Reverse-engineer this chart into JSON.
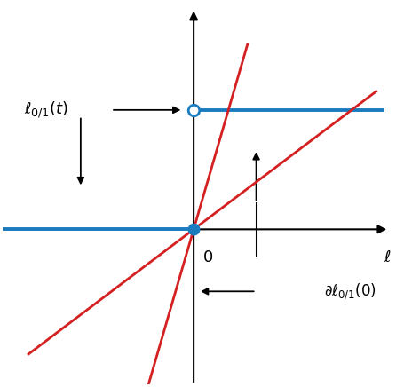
{
  "background_color": "#ffffff",
  "blue_line_y": 1.0,
  "red_slope1": 2.5,
  "red_slope2": 0.55,
  "open_circle": [
    0,
    1.0
  ],
  "filled_circle": [
    0,
    0
  ],
  "label_l01t": "$\\ell_{0/1}(t)$",
  "label_dl01": "$\\partial\\ell_{0/1}(0)$",
  "label_t": "$\\ell$",
  "label_0": "$0$",
  "xlim": [
    -2.2,
    2.3
  ],
  "ylim": [
    -1.3,
    1.9
  ],
  "arrow_color": "#000000",
  "blue_color": "#1a7bbf",
  "red_color": "#d42020"
}
